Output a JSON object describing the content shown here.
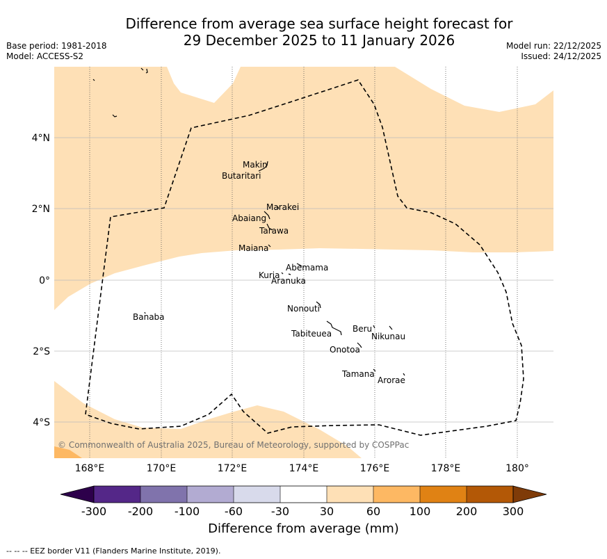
{
  "title_line1": "Difference from average sea surface height forecast for",
  "title_line2": "29 December 2025 to 11 January 2026",
  "base_period": "Base period: 1981-2018",
  "model": "Model: ACCESS-S2",
  "model_run": "Model run: 22/12/2025",
  "issued": "Issued: 24/12/2025",
  "copyright": "© Commonwealth of Australia 2025, Bureau of Meteorology, supported by COSPPac",
  "lon_ticks": [
    "168°E",
    "170°E",
    "172°E",
    "174°E",
    "176°E",
    "178°E",
    "180°"
  ],
  "lat_ticks": [
    "4°N",
    "2°N",
    "0°",
    "2°S",
    "4°S"
  ],
  "islands": [
    "Makin",
    "Butaritari",
    "Marakei",
    "Abaiang",
    "Tarawa",
    "Maiana",
    "Abemama",
    "Kuria",
    "Aranuka",
    "Banaba",
    "Nonouti",
    "Beru",
    "Nikunau",
    "Tabiteuea",
    "Onotoa",
    "Tamana",
    "Arorae"
  ],
  "colorbar": {
    "ticks": [
      "-300",
      "-200",
      "-100",
      "-60",
      "-30",
      "30",
      "60",
      "100",
      "200",
      "300"
    ],
    "title": "Difference from average (mm)",
    "colors": {
      "extend_low": "#2d004b",
      "lt_-300_to_-200": "#542788",
      "-200_to_-100": "#8073ac",
      "-100_to_-60": "#b2abd2",
      "-60_to_-30": "#d8daeb",
      "-30_to_30": "#ffffff",
      "30_to_60": "#fee0b6",
      "60_to_100": "#fdb863",
      "100_to_200": "#e08214",
      "200_to_300": "#b35806",
      "extend_high": "#7f3b08"
    }
  },
  "footer": "--  --  -- EEZ border V11 (Flanders Marine Institute, 2019)."
}
